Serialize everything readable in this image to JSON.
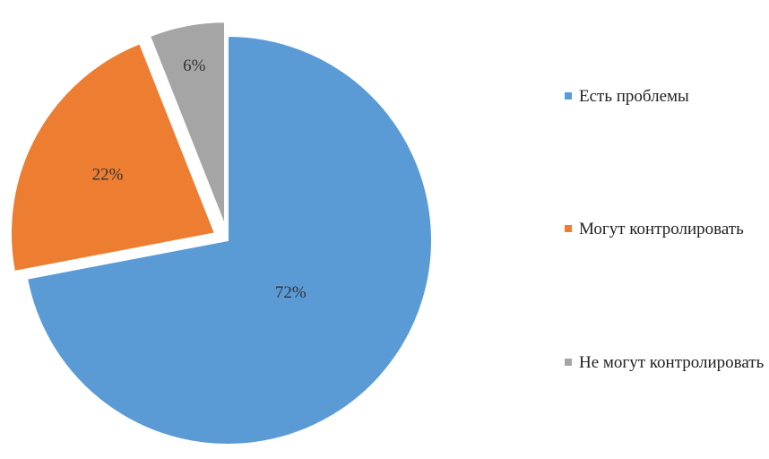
{
  "chart_data": {
    "type": "pie",
    "title": "",
    "slices": [
      {
        "name": "Есть проблемы",
        "value": 72,
        "label": "72%",
        "color": "#5B9BD5"
      },
      {
        "name": "Могут контролировать",
        "value": 22,
        "label": "22%",
        "color": "#ED7D31"
      },
      {
        "name": "Не могут контролировать",
        "value": 6,
        "label": "6%",
        "color": "#A5A5A5"
      }
    ],
    "legend": {
      "position": "right"
    },
    "exploded_slices": [
      "Могут контролировать",
      "Не могут контролировать"
    ]
  }
}
